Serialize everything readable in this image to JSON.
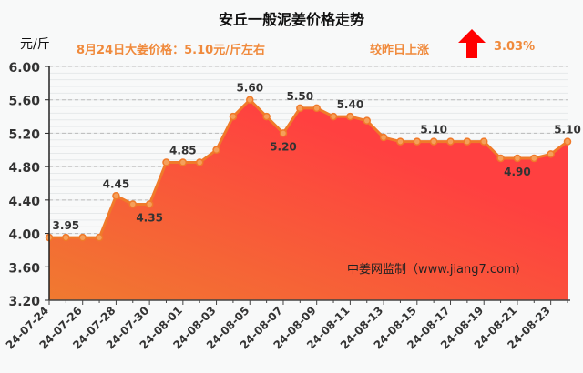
{
  "chart_data": {
    "type": "area",
    "title": "安丘一般泥姜价格走势",
    "ylabel": "元/斤",
    "ylim": [
      3.2,
      6.0
    ],
    "yticks": [
      "6.00",
      "5.60",
      "5.20",
      "4.80",
      "4.40",
      "4.00",
      "3.60",
      "3.20"
    ],
    "x": [
      "24-07-24",
      "24-07-25",
      "24-07-26",
      "24-07-27",
      "24-07-28",
      "24-07-29",
      "24-07-30",
      "24-07-31",
      "24-08-01",
      "24-08-02",
      "24-08-03",
      "24-08-04",
      "24-08-05",
      "24-08-06",
      "24-08-07",
      "24-08-08",
      "24-08-09",
      "24-08-10",
      "24-08-11",
      "24-08-12",
      "24-08-13",
      "24-08-14",
      "24-08-15",
      "24-08-16",
      "24-08-17",
      "24-08-18",
      "24-08-19",
      "24-08-20",
      "24-08-21",
      "24-08-22",
      "24-08-23",
      "24-08-24"
    ],
    "xtick_labels": [
      "24-07-24",
      "24-07-26",
      "24-07-28",
      "24-07-30",
      "24-08-01",
      "24-08-03",
      "24-08-05",
      "24-08-07",
      "24-08-09",
      "24-08-11",
      "24-08-13",
      "24-08-15",
      "24-08-17",
      "24-08-19",
      "24-08-21",
      "24-08-23"
    ],
    "values": [
      3.95,
      3.95,
      3.95,
      3.95,
      4.45,
      4.35,
      4.35,
      4.85,
      4.85,
      4.85,
      5.0,
      5.4,
      5.6,
      5.4,
      5.2,
      5.5,
      5.5,
      5.4,
      5.4,
      5.35,
      5.15,
      5.1,
      5.1,
      5.1,
      5.1,
      5.1,
      5.1,
      4.9,
      4.9,
      4.9,
      4.95,
      5.1
    ],
    "data_labels": [
      {
        "index": 1,
        "text": "3.95",
        "pos": "above"
      },
      {
        "index": 4,
        "text": "4.45",
        "pos": "above"
      },
      {
        "index": 6,
        "text": "4.35",
        "pos": "below"
      },
      {
        "index": 8,
        "text": "4.85",
        "pos": "above"
      },
      {
        "index": 12,
        "text": "5.60",
        "pos": "above"
      },
      {
        "index": 14,
        "text": "5.20",
        "pos": "below"
      },
      {
        "index": 15,
        "text": "5.50",
        "pos": "above"
      },
      {
        "index": 18,
        "text": "5.40",
        "pos": "above"
      },
      {
        "index": 23,
        "text": "5.10",
        "pos": "above"
      },
      {
        "index": 28,
        "text": "4.90",
        "pos": "below"
      },
      {
        "index": 31,
        "text": "5.10",
        "pos": "above"
      }
    ],
    "grid": true,
    "colors": {
      "line": "#f07a2a",
      "fill_top": "#ff4040",
      "fill_bottom": "#f07a30",
      "arrow": "#ff0000"
    }
  },
  "header": {
    "price_note": "8月24日大姜价格：5.10元/斤左右",
    "change_label": "较昨日上涨",
    "change_direction": "up-arrow-icon",
    "change_value": "3.03%"
  },
  "watermark": "中姜网监制（www.jiang7.com）"
}
